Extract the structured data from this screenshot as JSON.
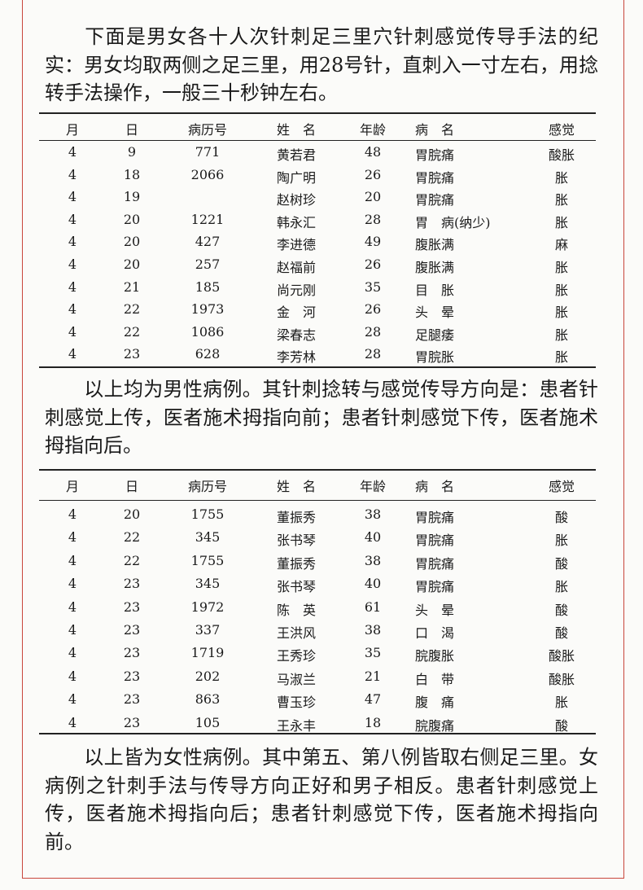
{
  "paragraphs": [
    "下面是男女各十人次针刺足三里穴针刺感觉传导手法的纪实：男女均取两侧之足三里，用28号针，直刺入一寸左右，用捻转手法操作，一般三十秒钟左右。",
    "以上均为男性病例。其针刺捻转与感觉传导方向是：患者针刺感觉上传，医者施术拇指向前；患者针刺感觉下传，医者施术拇指向后。",
    "以上皆为女性病例。其中第五、第八例皆取右侧足三里。女病例之针刺手法与传导方向正好和男子相反。患者针刺感觉上传，医者施术拇指向后；患者针刺感觉下传，医者施术拇指向前。"
  ],
  "columns": [
    "月",
    "日",
    "病历号",
    "姓　名",
    "年龄",
    "病　名",
    "感觉"
  ],
  "tables": [
    {
      "rows": [
        [
          "4",
          "9",
          "771",
          "黄若君",
          "48",
          "胃脘痛",
          "酸胀"
        ],
        [
          "4",
          "18",
          "2066",
          "陶广明",
          "26",
          "胃脘痛",
          "胀"
        ],
        [
          "4",
          "19",
          "",
          "赵树珍",
          "20",
          "胃脘痛",
          "胀"
        ],
        [
          "4",
          "20",
          "1221",
          "韩永汇",
          "28",
          "胃　病(纳少)",
          "胀"
        ],
        [
          "4",
          "20",
          "427",
          "李进德",
          "49",
          "腹胀满",
          "麻"
        ],
        [
          "4",
          "20",
          "257",
          "赵福前",
          "26",
          "腹胀满",
          "胀"
        ],
        [
          "4",
          "21",
          "185",
          "尚元刚",
          "35",
          "目　胀",
          "胀"
        ],
        [
          "4",
          "22",
          "1973",
          "金　河",
          "26",
          "头　晕",
          "胀"
        ],
        [
          "4",
          "22",
          "1086",
          "梁春志",
          "28",
          "足腿痿",
          "胀"
        ],
        [
          "4",
          "23",
          "628",
          "李芳林",
          "28",
          "胃脘胀",
          "胀"
        ]
      ]
    },
    {
      "rows": [
        [
          "4",
          "20",
          "1755",
          "董振秀",
          "38",
          "胃脘痛",
          "酸"
        ],
        [
          "4",
          "22",
          "345",
          "张书琴",
          "40",
          "胃脘痛",
          "胀"
        ],
        [
          "4",
          "22",
          "1755",
          "董振秀",
          "38",
          "胃脘痛",
          "酸"
        ],
        [
          "4",
          "23",
          "345",
          "张书琴",
          "40",
          "胃脘痛",
          "胀"
        ],
        [
          "4",
          "23",
          "1972",
          "陈　英",
          "61",
          "头　晕",
          "酸"
        ],
        [
          "4",
          "23",
          "337",
          "王洪风",
          "38",
          "口　渴",
          "酸"
        ],
        [
          "4",
          "23",
          "1719",
          "王秀珍",
          "35",
          "脘腹胀",
          "酸胀"
        ],
        [
          "4",
          "23",
          "202",
          "马淑兰",
          "21",
          "白　带",
          "酸胀"
        ],
        [
          "4",
          "23",
          "863",
          "曹玉珍",
          "47",
          "腹　痛",
          "胀"
        ],
        [
          "4",
          "23",
          "105",
          "王永丰",
          "18",
          "脘腹痛",
          "酸"
        ]
      ]
    }
  ],
  "colors": {
    "frame": "#c8463c",
    "text": "#1a1a1a"
  }
}
